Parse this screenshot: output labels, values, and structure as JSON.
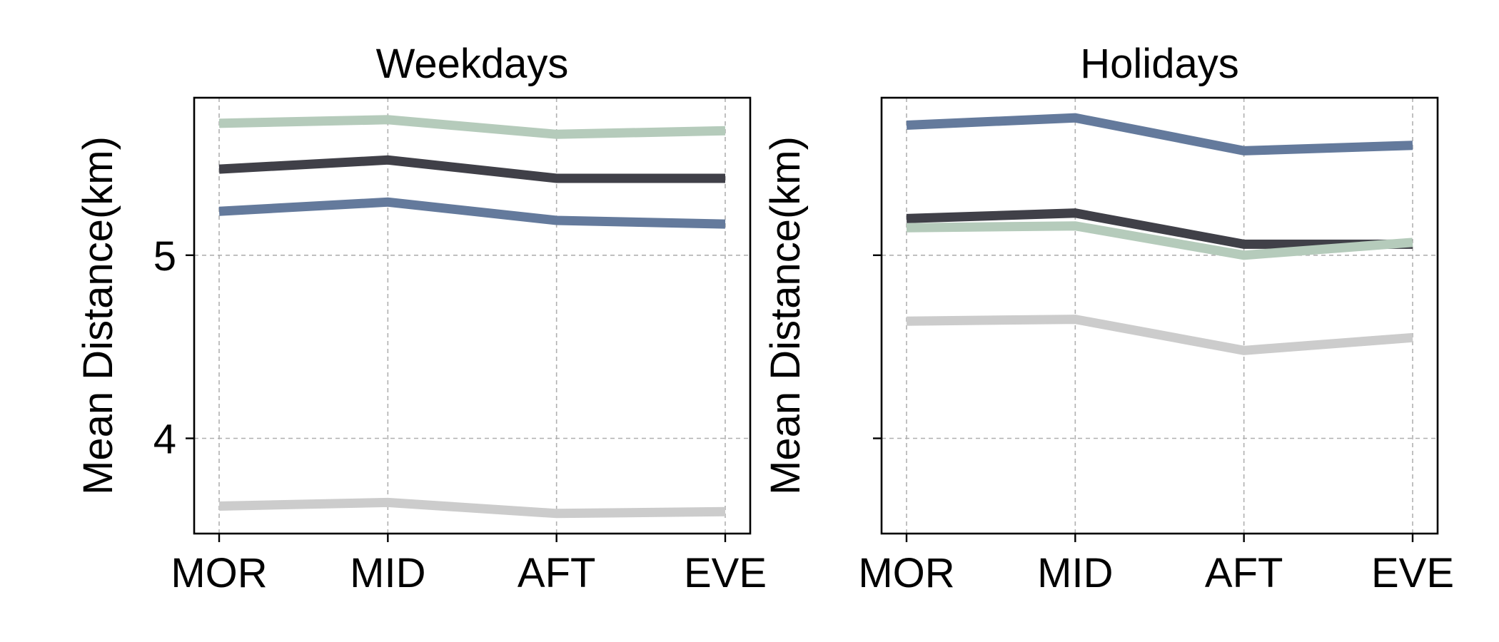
{
  "chart_data": [
    {
      "type": "line",
      "title": "Weekdays",
      "ylabel": "Mean Distance(km)",
      "xlabel": "",
      "categories": [
        "MOR",
        "MID",
        "AFT",
        "EVE"
      ],
      "ylim": [
        3.48,
        5.86
      ],
      "yticks": [
        4,
        5
      ],
      "ytick_labels": [
        "4",
        "5"
      ],
      "grid": true,
      "series": [
        {
          "color": "#b5cbbb",
          "values": [
            5.72,
            5.74,
            5.66,
            5.68
          ]
        },
        {
          "color": "#404048",
          "values": [
            5.47,
            5.52,
            5.42,
            5.42
          ]
        },
        {
          "color": "#647a9c",
          "values": [
            5.24,
            5.29,
            5.19,
            5.17
          ]
        },
        {
          "color": "#cccccc",
          "values": [
            3.63,
            3.65,
            3.59,
            3.6
          ]
        }
      ]
    },
    {
      "type": "line",
      "title": "Holidays",
      "ylabel": "Mean Distance(km)",
      "xlabel": "",
      "categories": [
        "MOR",
        "MID",
        "AFT",
        "EVE"
      ],
      "ylim": [
        3.48,
        5.86
      ],
      "yticks": [
        4,
        5
      ],
      "ytick_labels": [
        "",
        ""
      ],
      "grid": true,
      "series": [
        {
          "color": "#647a9c",
          "values": [
            5.71,
            5.75,
            5.57,
            5.6
          ]
        },
        {
          "color": "#404048",
          "values": [
            5.2,
            5.23,
            5.06,
            5.06
          ]
        },
        {
          "color": "#b5cbbb",
          "values": [
            5.15,
            5.16,
            5.0,
            5.07
          ]
        },
        {
          "color": "#cccccc",
          "values": [
            4.64,
            4.65,
            4.48,
            4.55
          ]
        }
      ]
    }
  ]
}
